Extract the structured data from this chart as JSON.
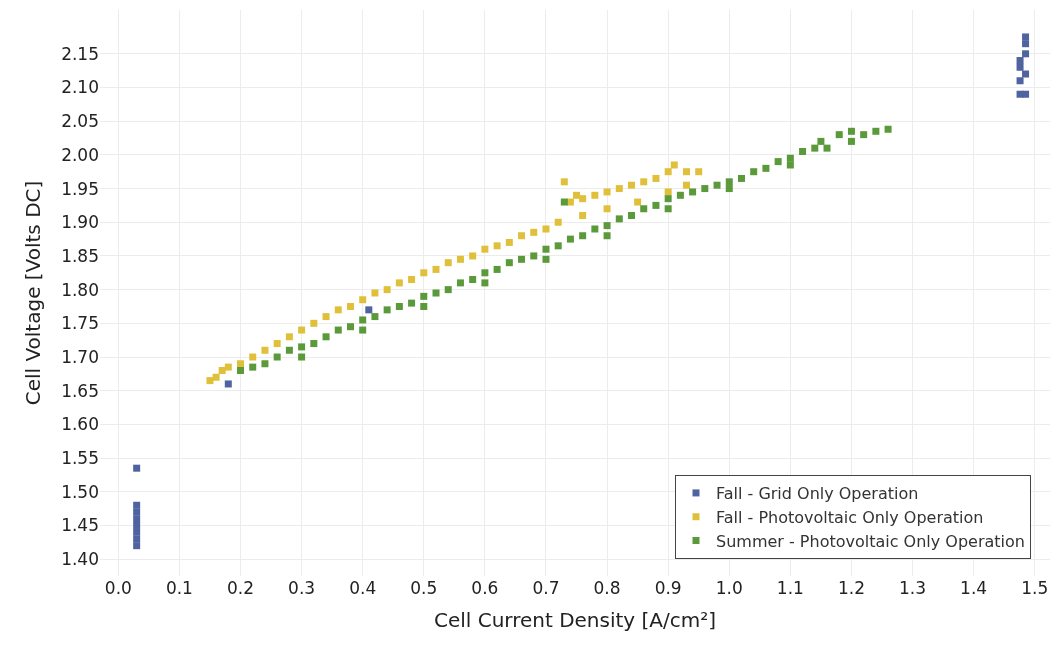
{
  "chart_data": {
    "type": "scatter",
    "xlabel": "Cell Current Density [A/cm²]",
    "ylabel": "Cell Voltage [Volts DC]",
    "xlim": [
      -0.03,
      1.525
    ],
    "ylim": [
      1.375,
      2.215
    ],
    "xticks": [
      {
        "value": 0,
        "label": "0.0"
      },
      0.1,
      0.2,
      0.3,
      0.4,
      0.5,
      0.6,
      0.7,
      0.8,
      0.9,
      {
        "value": 1,
        "label": "1.0"
      },
      1.1,
      1.2,
      1.3,
      1.4,
      1.5
    ],
    "yticks": [
      {
        "value": 1.4,
        "label": "1.40"
      },
      1.45,
      {
        "value": 1.5,
        "label": "1.50"
      },
      1.55,
      {
        "value": 1.6,
        "label": "1.60"
      },
      1.65,
      {
        "value": 1.7,
        "label": "1.70"
      },
      1.75,
      {
        "value": 1.8,
        "label": "1.80"
      },
      1.85,
      {
        "value": 1.9,
        "label": "1.90"
      },
      1.95,
      {
        "value": 2,
        "label": "2.00"
      },
      2.05,
      {
        "value": 2.1,
        "label": "2.10"
      },
      2.15
    ],
    "grid": true,
    "legend": "bottom right",
    "marker": "square",
    "series": [
      {
        "name": "Fall - Grid Only Operation",
        "color": "#4e63a0",
        "x": [
          0.03,
          0.03,
          0.03,
          0.03,
          0.03,
          0.03,
          0.03,
          0.03,
          0.18,
          0.41,
          1.476,
          1.476,
          1.476,
          1.476,
          1.485,
          1.485,
          1.485,
          1.485,
          1.485
        ],
        "values": [
          1.42,
          1.43,
          1.44,
          1.45,
          1.46,
          1.47,
          1.48,
          1.535,
          1.66,
          1.77,
          2.09,
          2.11,
          2.13,
          2.14,
          2.09,
          2.12,
          2.15,
          2.165,
          2.175
        ]
      },
      {
        "name": "Fall - Photovoltaic Only Operation",
        "color": "#e0c03a",
        "x": [
          0.15,
          0.16,
          0.17,
          0.18,
          0.2,
          0.22,
          0.24,
          0.26,
          0.28,
          0.3,
          0.32,
          0.34,
          0.36,
          0.38,
          0.4,
          0.42,
          0.44,
          0.46,
          0.48,
          0.5,
          0.52,
          0.54,
          0.56,
          0.58,
          0.6,
          0.62,
          0.64,
          0.66,
          0.68,
          0.7,
          0.72,
          0.73,
          0.74,
          0.75,
          0.76,
          0.78,
          0.8,
          0.82,
          0.84,
          0.86,
          0.88,
          0.9,
          0.91,
          0.93,
          0.95,
          0.76,
          0.8,
          0.85,
          0.9,
          0.93
        ],
        "values": [
          1.665,
          1.67,
          1.68,
          1.685,
          1.69,
          1.7,
          1.71,
          1.72,
          1.73,
          1.74,
          1.75,
          1.76,
          1.77,
          1.775,
          1.785,
          1.795,
          1.8,
          1.81,
          1.815,
          1.825,
          1.83,
          1.84,
          1.845,
          1.85,
          1.86,
          1.865,
          1.87,
          1.88,
          1.885,
          1.89,
          1.9,
          1.96,
          1.93,
          1.94,
          1.935,
          1.94,
          1.945,
          1.95,
          1.955,
          1.96,
          1.965,
          1.975,
          1.985,
          1.975,
          1.975,
          1.91,
          1.92,
          1.93,
          1.945,
          1.955
        ]
      },
      {
        "name": "Summer - Photovoltaic Only Operation",
        "color": "#5a9a3a",
        "x": [
          0.2,
          0.22,
          0.24,
          0.26,
          0.28,
          0.3,
          0.32,
          0.34,
          0.36,
          0.38,
          0.4,
          0.42,
          0.44,
          0.46,
          0.48,
          0.5,
          0.52,
          0.54,
          0.56,
          0.58,
          0.6,
          0.62,
          0.64,
          0.66,
          0.68,
          0.7,
          0.72,
          0.73,
          0.74,
          0.76,
          0.78,
          0.8,
          0.82,
          0.84,
          0.86,
          0.88,
          0.9,
          0.92,
          0.94,
          0.96,
          0.98,
          1.0,
          1.02,
          1.04,
          1.06,
          1.08,
          1.1,
          1.12,
          1.14,
          1.15,
          1.16,
          1.18,
          1.2,
          1.22,
          1.24,
          1.26,
          0.3,
          0.4,
          0.5,
          0.6,
          0.7,
          0.8,
          0.9,
          1.0,
          1.1,
          1.2
        ],
        "values": [
          1.68,
          1.685,
          1.69,
          1.7,
          1.71,
          1.715,
          1.72,
          1.73,
          1.74,
          1.745,
          1.755,
          1.76,
          1.77,
          1.775,
          1.78,
          1.79,
          1.795,
          1.8,
          1.81,
          1.815,
          1.825,
          1.83,
          1.84,
          1.845,
          1.85,
          1.86,
          1.865,
          1.93,
          1.875,
          1.88,
          1.89,
          1.895,
          1.905,
          1.91,
          1.92,
          1.925,
          1.935,
          1.94,
          1.945,
          1.95,
          1.955,
          1.96,
          1.965,
          1.975,
          1.98,
          1.99,
          1.995,
          2.005,
          2.01,
          2.02,
          2.01,
          2.03,
          2.035,
          2.03,
          2.035,
          2.038,
          1.7,
          1.74,
          1.775,
          1.81,
          1.845,
          1.88,
          1.92,
          1.95,
          1.985,
          2.02
        ]
      }
    ]
  }
}
